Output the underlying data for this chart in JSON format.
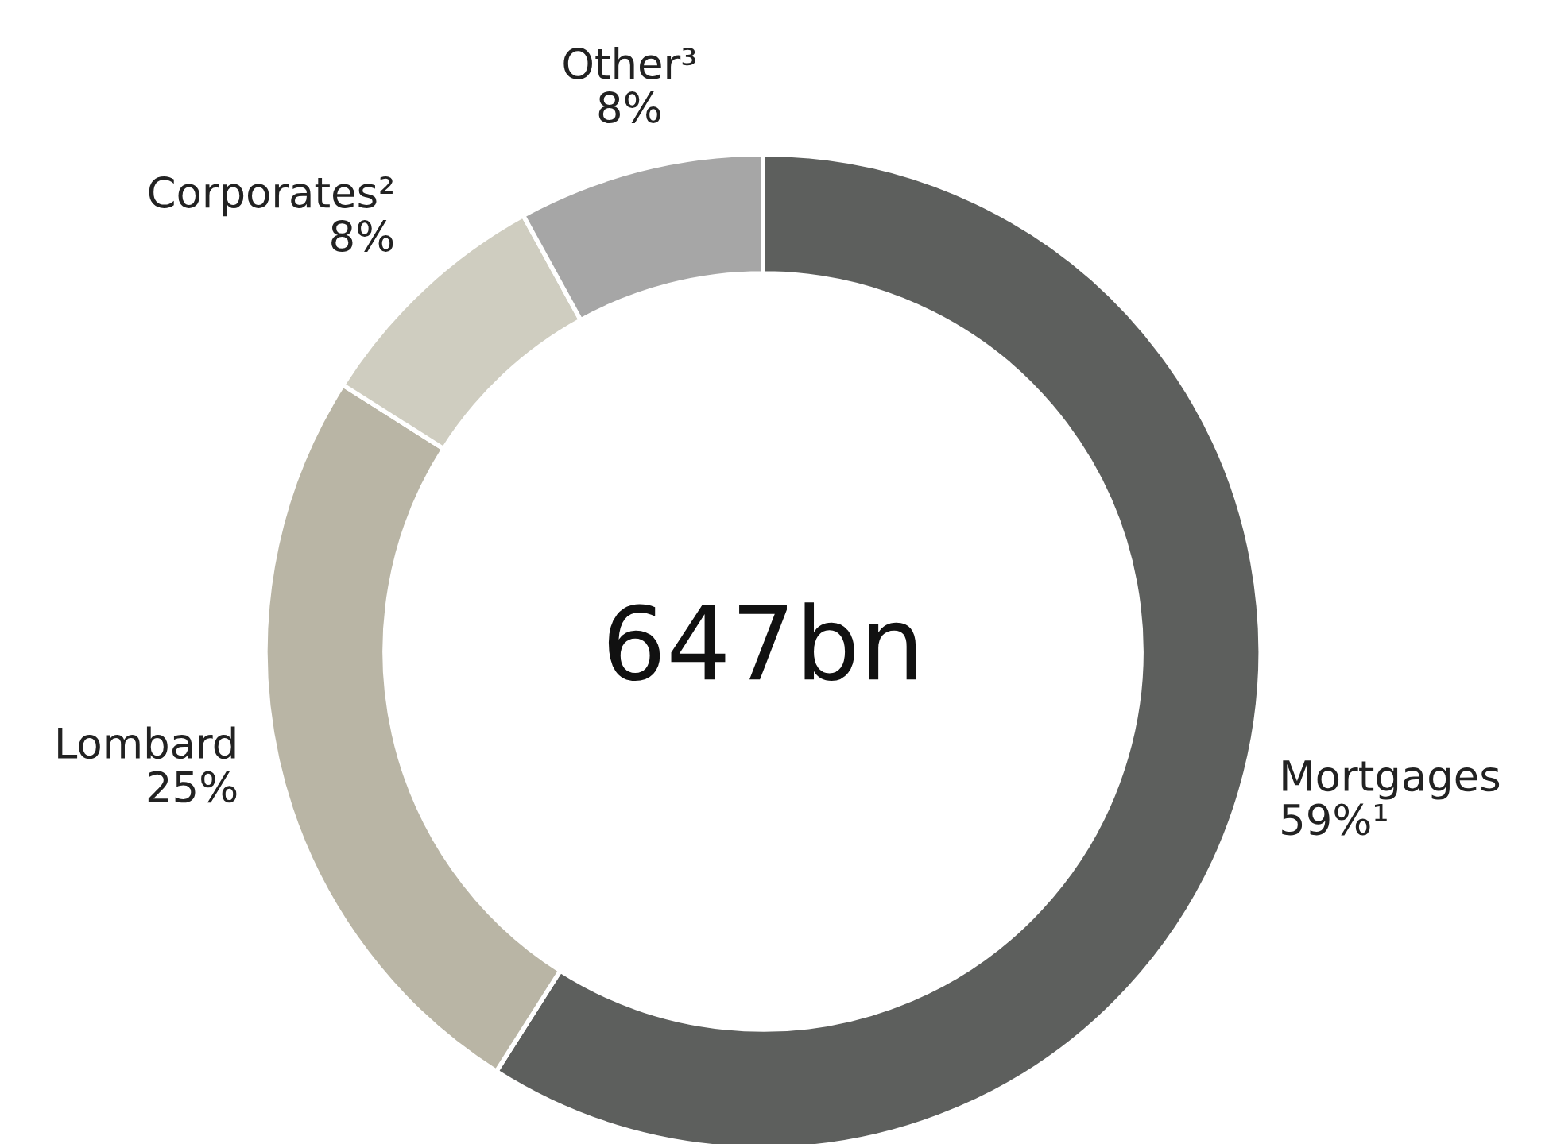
{
  "chart_data": {
    "type": "donut",
    "categories": [
      "Mortgages",
      "Lombard",
      "Corporates²",
      "Other³"
    ],
    "values": [
      59,
      25,
      8,
      8
    ],
    "colors": [
      "#5d5f5d",
      "#b9b5a5",
      "#cfcdc0",
      "#a6a6a6"
    ],
    "value_labels": [
      "59%¹",
      "25%",
      "8%",
      "8%"
    ],
    "annotations": [
      "647bn"
    ]
  }
}
